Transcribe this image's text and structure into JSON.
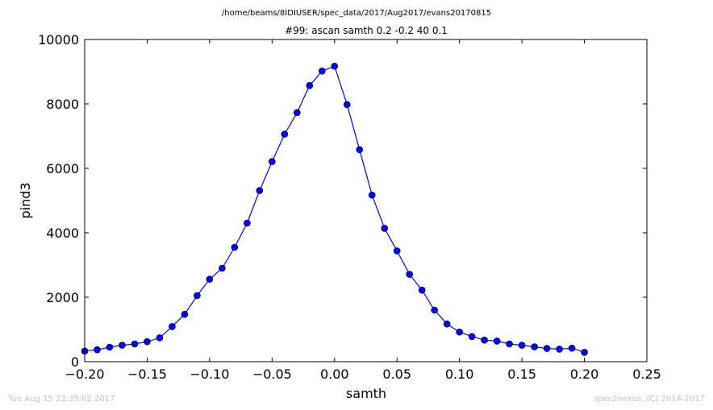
{
  "header": {
    "path": "/home/beams/8IDIUSER/spec_data/2017/Aug2017/evans20170815"
  },
  "footer": {
    "timestamp": "Tue Aug 15 23:35:02 2017",
    "credit": "spec2nexus, (C) 2014-2017"
  },
  "chart_data": {
    "type": "line",
    "title": "#99: ascan  samth 0.2 -0.2  40 0.1",
    "xlabel": "samth",
    "ylabel": "pind3",
    "xlim": [
      -0.2,
      0.25
    ],
    "ylim": [
      0,
      10000
    ],
    "xticks": [
      "−0.20",
      "−0.15",
      "−0.10",
      "−0.05",
      "0.00",
      "0.05",
      "0.10",
      "0.15",
      "0.20",
      "0.25"
    ],
    "yticks": [
      "0",
      "2000",
      "4000",
      "6000",
      "8000",
      "10000"
    ],
    "grid": false,
    "legend": "none",
    "color": "#0000ff",
    "marker": "circle",
    "x": [
      -0.2,
      -0.19,
      -0.18,
      -0.17,
      -0.16,
      -0.15,
      -0.14,
      -0.13,
      -0.12,
      -0.11,
      -0.1,
      -0.09,
      -0.08,
      -0.07,
      -0.06,
      -0.05,
      -0.04,
      -0.03,
      -0.02,
      -0.01,
      0.0,
      0.01,
      0.02,
      0.03,
      0.04,
      0.05,
      0.06,
      0.07,
      0.08,
      0.09,
      0.1,
      0.11,
      0.12,
      0.13,
      0.14,
      0.15,
      0.16,
      0.17,
      0.18,
      0.19,
      0.2
    ],
    "y": [
      330,
      370,
      450,
      510,
      550,
      620,
      740,
      1090,
      1470,
      2050,
      2560,
      2900,
      3550,
      4300,
      5310,
      6210,
      7060,
      7730,
      8570,
      9020,
      9170,
      7980,
      6580,
      5170,
      4140,
      3440,
      2710,
      2220,
      1600,
      1170,
      920,
      780,
      670,
      640,
      550,
      510,
      460,
      410,
      390,
      420,
      290
    ]
  }
}
